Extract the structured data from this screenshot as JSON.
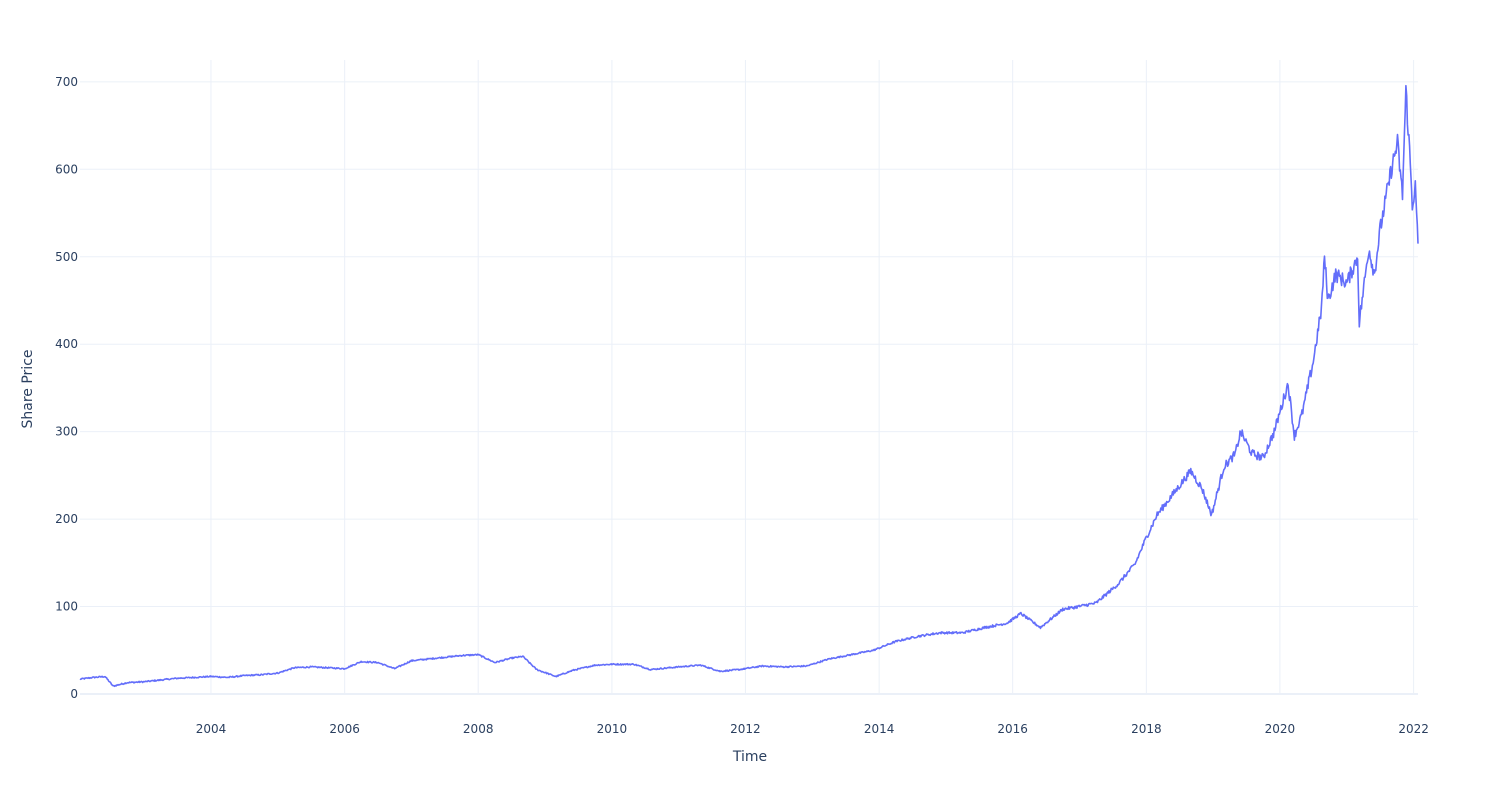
{
  "chart_data": {
    "type": "line",
    "title": "",
    "xlabel": "Time",
    "ylabel": "Share Price",
    "xlim": [
      "2002-01-15",
      "2022-01-25"
    ],
    "ylim": [
      0,
      725
    ],
    "x_ticks": [
      "2004",
      "2006",
      "2008",
      "2010",
      "2012",
      "2014",
      "2016",
      "2018",
      "2020",
      "2022"
    ],
    "y_ticks": [
      "0",
      "100",
      "200",
      "300",
      "400",
      "500",
      "600",
      "700"
    ],
    "grid": true,
    "legend": "none",
    "series": [
      {
        "color": "#636efa",
        "x": [
          "2002-01-15",
          "2002-04-01",
          "2002-06-01",
          "2002-07-15",
          "2002-10-01",
          "2003-01-01",
          "2003-04-01",
          "2003-07-01",
          "2003-10-01",
          "2004-01-01",
          "2004-04-01",
          "2004-07-01",
          "2004-10-01",
          "2005-01-01",
          "2005-04-01",
          "2005-07-01",
          "2005-10-01",
          "2006-01-01",
          "2006-04-01",
          "2006-07-01",
          "2006-10-01",
          "2007-01-01",
          "2007-04-01",
          "2007-07-01",
          "2007-10-01",
          "2008-01-01",
          "2008-04-01",
          "2008-07-01",
          "2008-09-01",
          "2008-11-15",
          "2009-03-01",
          "2009-06-01",
          "2009-10-01",
          "2010-01-01",
          "2010-05-01",
          "2010-08-01",
          "2011-01-01",
          "2011-05-01",
          "2011-08-15",
          "2011-12-01",
          "2012-04-01",
          "2012-08-01",
          "2012-12-01",
          "2013-04-01",
          "2013-08-01",
          "2013-12-01",
          "2014-04-01",
          "2014-08-01",
          "2014-12-01",
          "2015-04-01",
          "2015-08-01",
          "2015-12-01",
          "2016-02-15",
          "2016-06-01",
          "2016-10-01",
          "2016-12-01",
          "2017-04-01",
          "2017-08-01",
          "2017-11-01",
          "2018-01-01",
          "2018-03-01",
          "2018-06-01",
          "2018-09-01",
          "2018-11-01",
          "2018-12-24",
          "2019-03-01",
          "2019-05-01",
          "2019-06-01",
          "2019-08-01",
          "2019-10-01",
          "2019-12-01",
          "2020-02-15",
          "2020-03-20",
          "2020-05-01",
          "2020-07-01",
          "2020-08-15",
          "2020-09-01",
          "2020-09-20",
          "2020-11-01",
          "2021-01-01",
          "2021-03-01",
          "2021-03-10",
          "2021-05-01",
          "2021-06-01",
          "2021-07-01",
          "2021-09-01",
          "2021-10-05",
          "2021-11-01",
          "2021-11-20",
          "2021-12-10",
          "2021-12-25",
          "2022-01-10",
          "2022-01-25"
        ],
        "values": [
          17,
          19,
          20,
          9,
          13,
          14,
          16,
          18,
          19,
          20,
          19,
          21,
          22,
          24,
          30,
          31,
          30,
          29,
          37,
          36,
          29,
          38,
          40,
          42,
          44,
          45,
          36,
          41,
          43,
          28,
          20,
          27,
          33,
          34,
          34,
          28,
          31,
          33,
          26,
          28,
          32,
          31,
          32,
          40,
          45,
          50,
          60,
          66,
          70,
          70,
          76,
          81,
          92,
          76,
          97,
          99,
          104,
          126,
          149,
          179,
          205,
          230,
          255,
          235,
          205,
          260,
          274,
          300,
          275,
          270,
          300,
          355,
          295,
          320,
          380,
          440,
          500,
          450,
          480,
          470,
          500,
          425,
          510,
          480,
          530,
          600,
          630,
          570,
          690,
          620,
          560,
          580,
          515
        ]
      }
    ]
  }
}
